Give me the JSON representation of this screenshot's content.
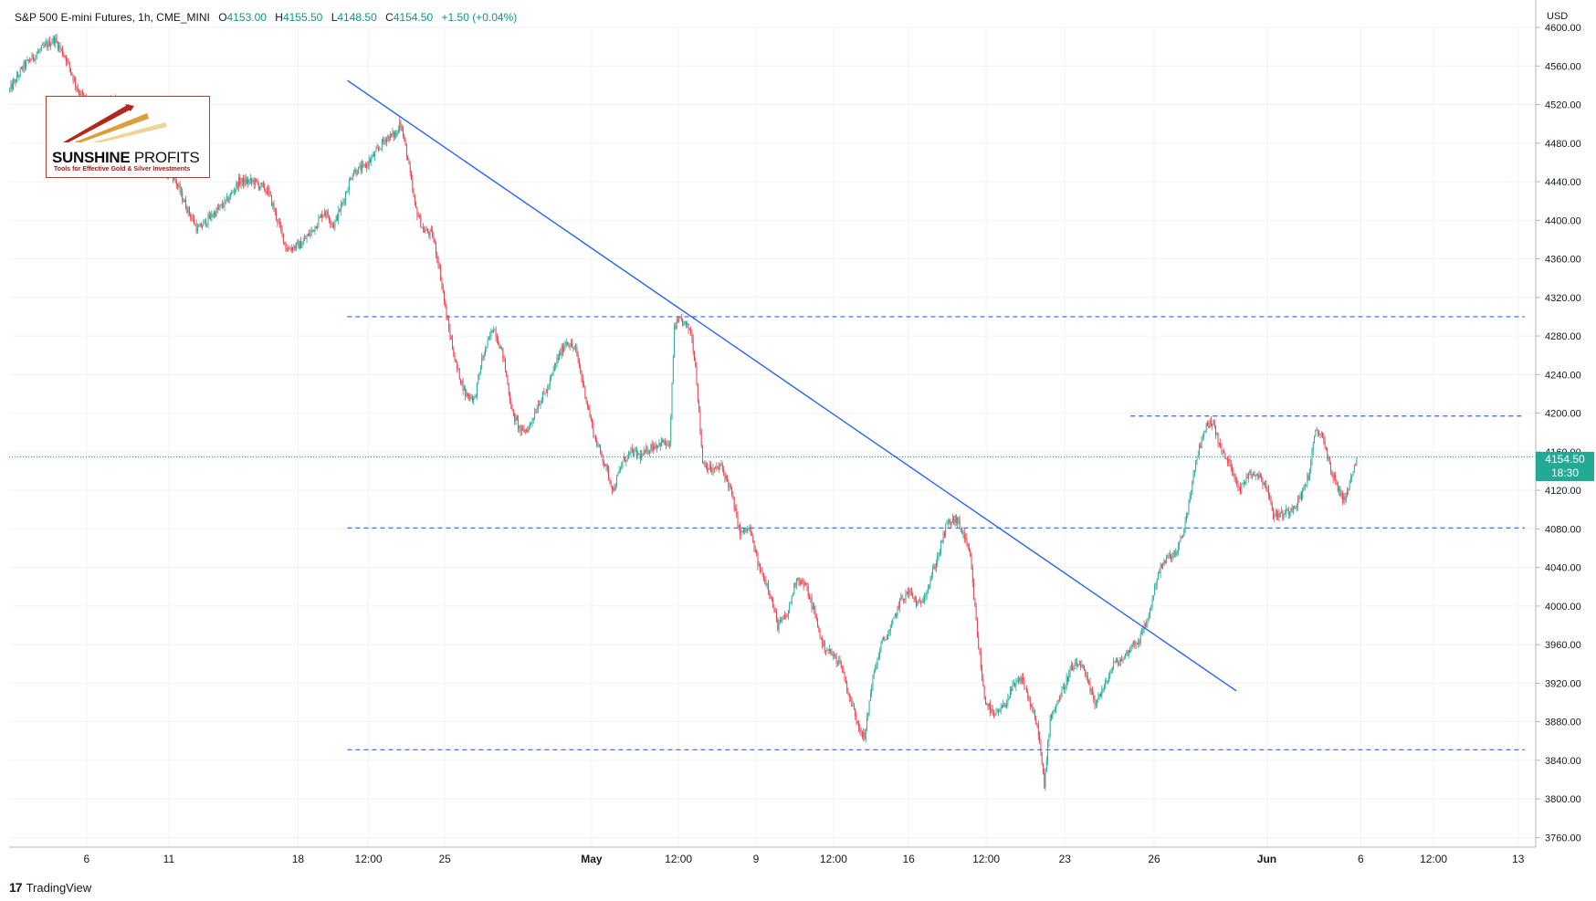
{
  "header": {
    "symbol": "S&P 500 E-mini Futures, 1h, CME_MINI",
    "open_label": "O",
    "open": "4153.00",
    "high_label": "H",
    "high": "4155.50",
    "low_label": "L",
    "low": "4148.50",
    "close_label": "C",
    "close": "4154.50",
    "change": "+1.50 (+0.04%)"
  },
  "currency": "USD",
  "last_price": {
    "price": "4154.50",
    "countdown": "18:30"
  },
  "logo": {
    "brand_bold": "SUNSHINE",
    "brand_light": " PROFITS",
    "tagline": "Tools for Effective Gold & Silver Investments"
  },
  "branding": {
    "name": "TradingView",
    "mark": "17"
  },
  "colors": {
    "up": "#22ab94",
    "down": "#f23645",
    "trendline": "#2962ff",
    "level": "#2962ff",
    "grid": "#f0f3fa",
    "last": "#089981"
  },
  "chart_data": {
    "type": "candlestick",
    "title": "S&P 500 E-mini Futures, 1h, CME_MINI",
    "ylim": [
      3750,
      4600
    ],
    "y_ticks": [
      3760,
      3800,
      3840,
      3880,
      3920,
      3960,
      4000,
      4040,
      4080,
      4120,
      4160,
      4200,
      4240,
      4280,
      4320,
      4360,
      4400,
      4440,
      4480,
      4520,
      4560,
      4600
    ],
    "x_ticks": [
      "6",
      "11",
      "18",
      "12:00",
      "25",
      "May",
      "12:00",
      "9",
      "12:00",
      "16",
      "12:00",
      "23",
      "26",
      "Jun",
      "6",
      "12:00",
      "13"
    ],
    "x_tick_bars": [
      66,
      136,
      246,
      306,
      371,
      496,
      570,
      636,
      702,
      766,
      832,
      899,
      975,
      1071,
      1151,
      1213,
      1285
    ],
    "bar_count": 1300,
    "last_bar": 1147,
    "horizontal_levels": [
      {
        "price": 4300,
        "from_bar": 288
      },
      {
        "price": 4197,
        "from_bar": 955
      },
      {
        "price": 4081,
        "from_bar": 288
      },
      {
        "price": 3851,
        "from_bar": 288
      }
    ],
    "trendline": {
      "from": {
        "bar": 288,
        "price": 4545
      },
      "to": {
        "bar": 1045,
        "price": 3912
      }
    },
    "price_path": [
      [
        0,
        4535
      ],
      [
        12,
        4560
      ],
      [
        25,
        4575
      ],
      [
        38,
        4588
      ],
      [
        48,
        4568
      ],
      [
        58,
        4535
      ],
      [
        72,
        4515
      ],
      [
        90,
        4525
      ],
      [
        108,
        4470
      ],
      [
        120,
        4455
      ],
      [
        138,
        4450
      ],
      [
        150,
        4415
      ],
      [
        160,
        4390
      ],
      [
        172,
        4405
      ],
      [
        185,
        4420
      ],
      [
        195,
        4440
      ],
      [
        208,
        4440
      ],
      [
        220,
        4430
      ],
      [
        228,
        4400
      ],
      [
        236,
        4370
      ],
      [
        248,
        4375
      ],
      [
        258,
        4390
      ],
      [
        268,
        4410
      ],
      [
        276,
        4395
      ],
      [
        284,
        4420
      ],
      [
        292,
        4450
      ],
      [
        302,
        4455
      ],
      [
        312,
        4470
      ],
      [
        320,
        4485
      ],
      [
        330,
        4490
      ],
      [
        332,
        4505
      ],
      [
        338,
        4470
      ],
      [
        345,
        4415
      ],
      [
        352,
        4390
      ],
      [
        360,
        4385
      ],
      [
        366,
        4350
      ],
      [
        372,
        4300
      ],
      [
        380,
        4250
      ],
      [
        388,
        4220
      ],
      [
        396,
        4215
      ],
      [
        402,
        4255
      ],
      [
        412,
        4290
      ],
      [
        420,
        4260
      ],
      [
        428,
        4200
      ],
      [
        436,
        4180
      ],
      [
        442,
        4185
      ],
      [
        450,
        4210
      ],
      [
        458,
        4225
      ],
      [
        466,
        4255
      ],
      [
        474,
        4275
      ],
      [
        482,
        4265
      ],
      [
        490,
        4220
      ],
      [
        498,
        4175
      ],
      [
        506,
        4150
      ],
      [
        514,
        4120
      ],
      [
        522,
        4150
      ],
      [
        530,
        4160
      ],
      [
        538,
        4155
      ],
      [
        546,
        4165
      ],
      [
        556,
        4170
      ],
      [
        562,
        4165
      ],
      [
        566,
        4290
      ],
      [
        572,
        4296
      ],
      [
        580,
        4285
      ],
      [
        584,
        4250
      ],
      [
        590,
        4150
      ],
      [
        598,
        4140
      ],
      [
        606,
        4145
      ],
      [
        614,
        4120
      ],
      [
        622,
        4075
      ],
      [
        630,
        4080
      ],
      [
        638,
        4040
      ],
      [
        646,
        4020
      ],
      [
        654,
        3980
      ],
      [
        662,
        3990
      ],
      [
        670,
        4030
      ],
      [
        678,
        4020
      ],
      [
        686,
        3990
      ],
      [
        692,
        3960
      ],
      [
        700,
        3950
      ],
      [
        708,
        3940
      ],
      [
        714,
        3910
      ],
      [
        722,
        3880
      ],
      [
        728,
        3862
      ],
      [
        734,
        3920
      ],
      [
        742,
        3960
      ],
      [
        750,
        3975
      ],
      [
        758,
        4005
      ],
      [
        766,
        4015
      ],
      [
        774,
        4000
      ],
      [
        782,
        4020
      ],
      [
        790,
        4050
      ],
      [
        798,
        4085
      ],
      [
        806,
        4090
      ],
      [
        812,
        4075
      ],
      [
        818,
        4050
      ],
      [
        824,
        3970
      ],
      [
        830,
        3905
      ],
      [
        838,
        3885
      ],
      [
        846,
        3895
      ],
      [
        854,
        3915
      ],
      [
        862,
        3925
      ],
      [
        870,
        3895
      ],
      [
        876,
        3870
      ],
      [
        881,
        3812
      ],
      [
        886,
        3885
      ],
      [
        894,
        3905
      ],
      [
        904,
        3935
      ],
      [
        912,
        3940
      ],
      [
        918,
        3920
      ],
      [
        924,
        3900
      ],
      [
        932,
        3915
      ],
      [
        940,
        3940
      ],
      [
        948,
        3945
      ],
      [
        956,
        3960
      ],
      [
        962,
        3965
      ],
      [
        970,
        3990
      ],
      [
        978,
        4035
      ],
      [
        986,
        4050
      ],
      [
        994,
        4055
      ],
      [
        1000,
        4080
      ],
      [
        1006,
        4120
      ],
      [
        1012,
        4160
      ],
      [
        1018,
        4185
      ],
      [
        1024,
        4192
      ],
      [
        1032,
        4160
      ],
      [
        1040,
        4145
      ],
      [
        1048,
        4120
      ],
      [
        1056,
        4140
      ],
      [
        1064,
        4135
      ],
      [
        1070,
        4125
      ],
      [
        1076,
        4095
      ],
      [
        1084,
        4095
      ],
      [
        1090,
        4100
      ],
      [
        1098,
        4110
      ],
      [
        1106,
        4135
      ],
      [
        1112,
        4180
      ],
      [
        1118,
        4178
      ],
      [
        1124,
        4145
      ],
      [
        1130,
        4125
      ],
      [
        1136,
        4110
      ],
      [
        1142,
        4130
      ],
      [
        1147,
        4154.5
      ]
    ]
  }
}
